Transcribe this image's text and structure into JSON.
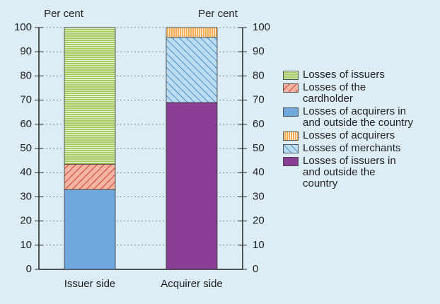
{
  "chart_data": {
    "type": "stacked-bar",
    "y_label": "Per cent",
    "y2_label": "Per cent",
    "categories": [
      "Issuer side",
      "Acquirer side"
    ],
    "series": [
      {
        "name": "Losses of issuers",
        "color": "#9dc64f",
        "hatch": "horizontal",
        "values": [
          56.5,
          null
        ]
      },
      {
        "name": "Losses of the cardholder",
        "color": "#f2b5a3",
        "hatch": "diagonal-up",
        "values": [
          10.5,
          null
        ]
      },
      {
        "name": "Losses of acquirers in and outside the country",
        "color": "#6fa8dc",
        "hatch": "none",
        "values": [
          33,
          null
        ]
      },
      {
        "name": "Losses of acquirers",
        "color": "#f7a13b",
        "hatch": "vertical",
        "values": [
          null,
          4
        ]
      },
      {
        "name": "Losses of merchants",
        "color": "#bcdcf2",
        "hatch": "diagonal-down",
        "values": [
          null,
          27
        ]
      },
      {
        "name": "Losses of issuers in and outside the country",
        "color": "#8a3f97",
        "hatch": "none",
        "values": [
          null,
          69
        ]
      }
    ],
    "ylim": [
      0,
      100
    ],
    "yticks": [
      0,
      10,
      20,
      30,
      40,
      50,
      60,
      70,
      80,
      90,
      100
    ],
    "y2lim": [
      0,
      100
    ],
    "y2ticks": [
      0,
      10,
      20,
      30,
      40,
      50,
      60,
      70,
      80,
      90,
      100
    ],
    "grid": true
  }
}
